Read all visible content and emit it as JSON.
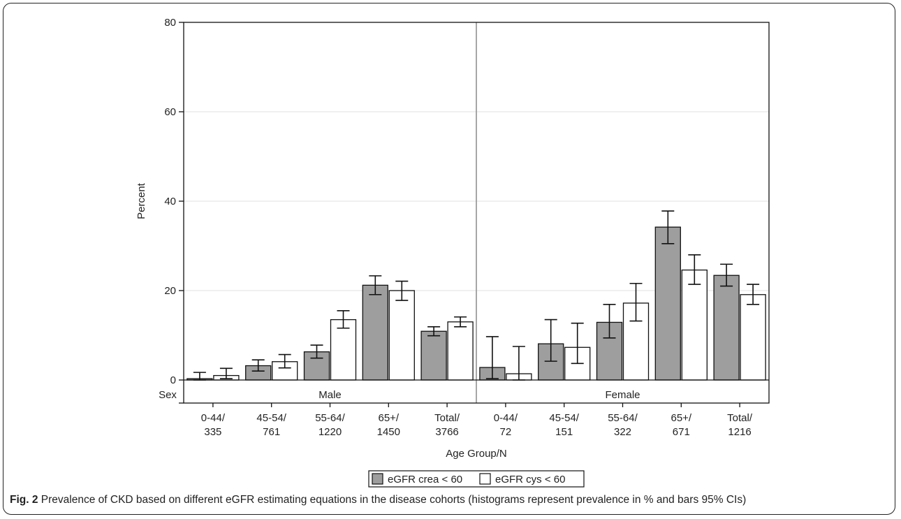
{
  "chart_data": {
    "type": "bar",
    "ylabel": "Percent",
    "xlabel": "Age Group/N",
    "ylim": [
      0,
      80
    ],
    "yticks": [
      0,
      20,
      40,
      60,
      80
    ],
    "grid": true,
    "legend_position": "bottom",
    "panel_header": "Sex",
    "panels": [
      {
        "name": "Male",
        "categories": [
          [
            "0-44/",
            "335"
          ],
          [
            "45-54/",
            "761"
          ],
          [
            "55-64/",
            "1220"
          ],
          [
            "65+/",
            "1450"
          ],
          [
            "Total/",
            "3766"
          ]
        ],
        "series": [
          {
            "name": "eGFR crea < 60",
            "values": [
              0.3,
              3.2,
              6.3,
              21.2,
              10.9
            ],
            "ci_low": [
              0.0,
              2.0,
              4.9,
              19.1,
              9.9
            ],
            "ci_high": [
              1.7,
              4.5,
              7.8,
              23.3,
              11.9
            ]
          },
          {
            "name": "eGFR cys < 60",
            "values": [
              1.0,
              4.1,
              13.5,
              20.0,
              13.0
            ],
            "ci_low": [
              0.3,
              2.7,
              11.6,
              17.8,
              11.9
            ],
            "ci_high": [
              2.6,
              5.7,
              15.5,
              22.1,
              14.1
            ]
          }
        ]
      },
      {
        "name": "Female",
        "categories": [
          [
            "0-44/",
            "72"
          ],
          [
            "45-54/",
            "151"
          ],
          [
            "55-64/",
            "322"
          ],
          [
            "65+/",
            "671"
          ],
          [
            "Total/",
            "1216"
          ]
        ],
        "series": [
          {
            "name": "eGFR crea < 60",
            "values": [
              2.8,
              8.1,
              12.9,
              34.2,
              23.4
            ],
            "ci_low": [
              0.3,
              4.2,
              9.4,
              30.5,
              21.0
            ],
            "ci_high": [
              9.7,
              13.5,
              16.9,
              37.8,
              25.9
            ]
          },
          {
            "name": "eGFR cys < 60",
            "values": [
              1.4,
              7.3,
              17.2,
              24.6,
              19.1
            ],
            "ci_low": [
              0.0,
              3.7,
              13.2,
              21.4,
              16.9
            ],
            "ci_high": [
              7.5,
              12.7,
              21.6,
              28.0,
              21.4
            ]
          }
        ]
      }
    ],
    "colors": {
      "series_0": "#9e9e9e",
      "series_1": "#ffffff",
      "grid": "#e2e2e2",
      "divider": "#8a8a8a"
    }
  },
  "caption": {
    "label": "Fig. 2",
    "text": " Prevalence of CKD based on different eGFR estimating equations in the disease cohorts (histograms represent prevalence in % and bars 95% CIs)"
  }
}
